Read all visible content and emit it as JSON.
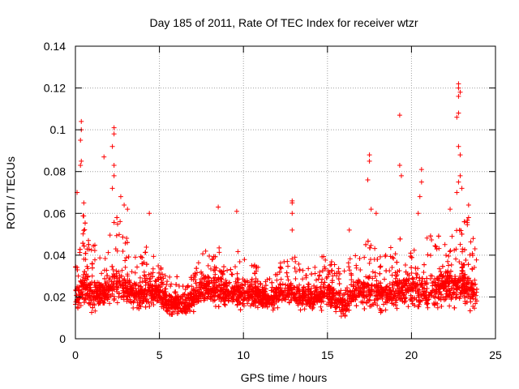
{
  "chart_data": {
    "type": "scatter",
    "title": "Day 185 of 2011, Rate Of TEC Index for receiver wtzr",
    "xlabel": "GPS time / hours",
    "ylabel": "ROTI / TECUs",
    "xlim": [
      0,
      25
    ],
    "ylim": [
      0,
      0.14
    ],
    "xticks": [
      "0",
      "5",
      "10",
      "15",
      "20",
      "25"
    ],
    "yticks": [
      "0",
      "0.02",
      "0.04",
      "0.06",
      "0.08",
      "0.1",
      "0.12",
      "0.14"
    ],
    "grid": true,
    "marker": "plus",
    "color": "#ff0000",
    "x_range_of_data": [
      0,
      23.9
    ],
    "envelope": {
      "x": [
        0,
        0.5,
        1,
        1.5,
        2,
        2.5,
        3,
        3.5,
        4,
        4.5,
        5,
        5.5,
        6,
        6.5,
        7,
        7.5,
        8,
        8.5,
        9,
        9.5,
        10,
        10.5,
        11,
        11.5,
        12,
        12.5,
        13,
        13.5,
        14,
        14.5,
        15,
        15.5,
        16,
        16.5,
        17,
        17.5,
        18,
        18.5,
        19,
        19.5,
        20,
        20.5,
        21,
        21.5,
        22,
        22.5,
        23,
        23.5,
        23.9
      ],
      "low": [
        0.008,
        0.006,
        0.007,
        0.008,
        0.008,
        0.009,
        0.008,
        0.008,
        0.009,
        0.008,
        0.008,
        0.007,
        0.008,
        0.008,
        0.009,
        0.012,
        0.012,
        0.01,
        0.01,
        0.01,
        0.01,
        0.01,
        0.011,
        0.011,
        0.011,
        0.012,
        0.011,
        0.01,
        0.01,
        0.01,
        0.009,
        0.008,
        0.006,
        0.008,
        0.008,
        0.006,
        0.008,
        0.008,
        0.008,
        0.008,
        0.008,
        0.008,
        0.008,
        0.008,
        0.008,
        0.008,
        0.006,
        0.006,
        0.005
      ],
      "mid": [
        0.018,
        0.025,
        0.02,
        0.02,
        0.022,
        0.025,
        0.022,
        0.02,
        0.02,
        0.022,
        0.02,
        0.016,
        0.015,
        0.014,
        0.016,
        0.022,
        0.022,
        0.022,
        0.02,
        0.02,
        0.02,
        0.02,
        0.018,
        0.016,
        0.018,
        0.02,
        0.02,
        0.018,
        0.018,
        0.018,
        0.02,
        0.018,
        0.015,
        0.02,
        0.02,
        0.022,
        0.02,
        0.02,
        0.02,
        0.022,
        0.022,
        0.022,
        0.022,
        0.022,
        0.024,
        0.024,
        0.025,
        0.022,
        0.02
      ],
      "high": [
        0.05,
        0.06,
        0.045,
        0.045,
        0.05,
        0.06,
        0.05,
        0.04,
        0.045,
        0.045,
        0.035,
        0.03,
        0.03,
        0.028,
        0.03,
        0.045,
        0.04,
        0.045,
        0.035,
        0.04,
        0.045,
        0.04,
        0.035,
        0.03,
        0.035,
        0.04,
        0.04,
        0.035,
        0.035,
        0.04,
        0.04,
        0.035,
        0.035,
        0.04,
        0.04,
        0.05,
        0.04,
        0.045,
        0.045,
        0.05,
        0.05,
        0.045,
        0.05,
        0.05,
        0.05,
        0.055,
        0.06,
        0.055,
        0.04
      ]
    },
    "peaks": [
      {
        "x": 0.35,
        "y": 0.104
      },
      {
        "x": 0.35,
        "y": 0.1
      },
      {
        "x": 0.3,
        "y": 0.095
      },
      {
        "x": 0.35,
        "y": 0.085
      },
      {
        "x": 0.3,
        "y": 0.083
      },
      {
        "x": 0.1,
        "y": 0.07
      },
      {
        "x": 0.5,
        "y": 0.065
      },
      {
        "x": 1.7,
        "y": 0.087
      },
      {
        "x": 2.3,
        "y": 0.101
      },
      {
        "x": 2.3,
        "y": 0.098
      },
      {
        "x": 2.2,
        "y": 0.092
      },
      {
        "x": 2.3,
        "y": 0.083
      },
      {
        "x": 2.3,
        "y": 0.078
      },
      {
        "x": 2.2,
        "y": 0.072
      },
      {
        "x": 2.7,
        "y": 0.068
      },
      {
        "x": 2.9,
        "y": 0.064
      },
      {
        "x": 3.1,
        "y": 0.062
      },
      {
        "x": 4.4,
        "y": 0.06
      },
      {
        "x": 8.5,
        "y": 0.063
      },
      {
        "x": 9.6,
        "y": 0.061
      },
      {
        "x": 12.9,
        "y": 0.066
      },
      {
        "x": 12.9,
        "y": 0.065
      },
      {
        "x": 12.9,
        "y": 0.06
      },
      {
        "x": 12.9,
        "y": 0.052
      },
      {
        "x": 16.3,
        "y": 0.052
      },
      {
        "x": 17.5,
        "y": 0.088
      },
      {
        "x": 17.5,
        "y": 0.085
      },
      {
        "x": 17.4,
        "y": 0.076
      },
      {
        "x": 17.6,
        "y": 0.062
      },
      {
        "x": 17.9,
        "y": 0.06
      },
      {
        "x": 19.3,
        "y": 0.107
      },
      {
        "x": 19.3,
        "y": 0.083
      },
      {
        "x": 19.4,
        "y": 0.078
      },
      {
        "x": 20.6,
        "y": 0.081
      },
      {
        "x": 20.6,
        "y": 0.075
      },
      {
        "x": 20.5,
        "y": 0.068
      },
      {
        "x": 20.4,
        "y": 0.06
      },
      {
        "x": 22.8,
        "y": 0.122
      },
      {
        "x": 22.8,
        "y": 0.12
      },
      {
        "x": 22.9,
        "y": 0.118
      },
      {
        "x": 22.8,
        "y": 0.116
      },
      {
        "x": 22.8,
        "y": 0.108
      },
      {
        "x": 22.7,
        "y": 0.106
      },
      {
        "x": 22.8,
        "y": 0.092
      },
      {
        "x": 22.9,
        "y": 0.088
      },
      {
        "x": 22.9,
        "y": 0.078
      },
      {
        "x": 22.8,
        "y": 0.075
      },
      {
        "x": 23.0,
        "y": 0.072
      },
      {
        "x": 22.7,
        "y": 0.07
      },
      {
        "x": 23.4,
        "y": 0.064
      },
      {
        "x": 23.4,
        "y": 0.058
      },
      {
        "x": 22.3,
        "y": 0.062
      }
    ]
  }
}
